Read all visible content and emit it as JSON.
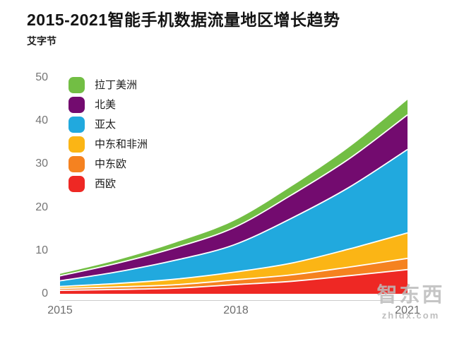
{
  "header": {
    "title": "2015-2021智能手机数据流量地区增长趋势",
    "subtitle": "艾字节"
  },
  "legend": {
    "items": [
      {
        "label": "拉丁美洲",
        "color": "#72BE44"
      },
      {
        "label": "北美",
        "color": "#730B6F"
      },
      {
        "label": "亚太",
        "color": "#21A9DE"
      },
      {
        "label": "中东和非洲",
        "color": "#FBB515"
      },
      {
        "label": "中东欧",
        "color": "#F58220"
      },
      {
        "label": "西欧",
        "color": "#EE2824"
      }
    ]
  },
  "axes": {
    "y_labels": [
      "50",
      "40",
      "30",
      "20",
      "10",
      "0"
    ],
    "x_labels": [
      "2015",
      "2018",
      "2021"
    ]
  },
  "chart_data": {
    "type": "area",
    "stacked": true,
    "title": "2015-2021智能手机数据流量地区增长趋势",
    "ylabel": "艾字节",
    "x": [
      2015,
      2016,
      2017,
      2018,
      2019,
      2020,
      2021
    ],
    "x_tick_values": [
      2015,
      2018,
      2021
    ],
    "y_ticks": [
      0,
      10,
      20,
      30,
      40,
      50
    ],
    "ylim": [
      0,
      50
    ],
    "grid": false,
    "legend_position": "inside-top-left",
    "series": [
      {
        "name": "西欧",
        "color": "#EE2824",
        "values": [
          0.8,
          1.0,
          1.3,
          2.1,
          2.9,
          4.2,
          5.6
        ]
      },
      {
        "name": "中东欧",
        "color": "#F58220",
        "values": [
          0.45,
          0.6,
          0.8,
          1.1,
          1.5,
          2.0,
          2.6
        ]
      },
      {
        "name": "中东和非洲",
        "color": "#FBB515",
        "values": [
          0.45,
          0.8,
          1.3,
          1.8,
          2.7,
          4.2,
          5.9
        ]
      },
      {
        "name": "亚太",
        "color": "#21A9DE",
        "values": [
          1.3,
          2.7,
          4.4,
          6.3,
          10.4,
          14.3,
          19.3
        ]
      },
      {
        "name": "北美",
        "color": "#730B6F",
        "values": [
          1.15,
          2.0,
          2.9,
          4.0,
          5.4,
          6.6,
          8.0
        ]
      },
      {
        "name": "拉丁美洲",
        "color": "#72BE44",
        "values": [
          0.45,
          0.75,
          1.2,
          1.6,
          2.0,
          2.7,
          3.5
        ]
      }
    ],
    "totals_by_year": [
      4.6,
      7.85,
      11.9,
      16.9,
      24.9,
      34.0,
      44.9
    ]
  },
  "watermark": {
    "logo_text": "智东西",
    "url_text": "zhidx.com"
  }
}
